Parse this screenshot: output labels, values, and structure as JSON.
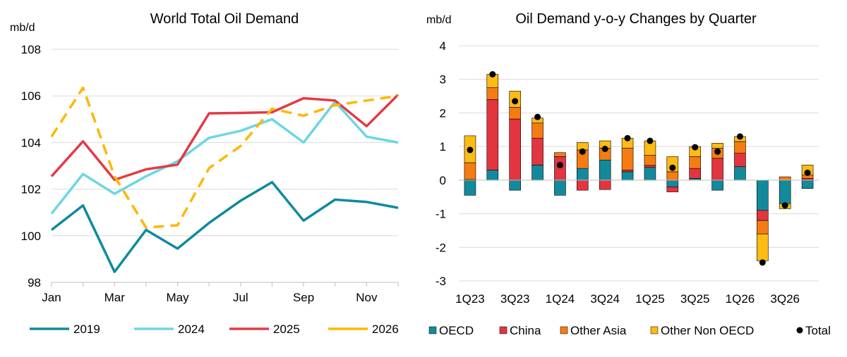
{
  "colors": {
    "s2019": "#0f8a9d",
    "s2024": "#6cd6e4",
    "s2025": "#e23b44",
    "s2026": "#ffb700",
    "oecd": "#138a9c",
    "china": "#e3353f",
    "other_asia": "#f57c12",
    "other_non_oecd": "#fdbb13",
    "total": "#000000",
    "grid": "#d9d9d9"
  },
  "chart_data": [
    {
      "type": "line",
      "title": "World Total Oil Demand",
      "ylabel": "mb/d",
      "ylim": [
        98,
        108
      ],
      "yticks": [
        "98",
        "100",
        "102",
        "104",
        "106",
        "108"
      ],
      "x": [
        "Jan",
        "Feb",
        "Mar",
        "Apr",
        "May",
        "Jun",
        "Jul",
        "Aug",
        "Sep",
        "Oct",
        "Nov",
        "Dec"
      ],
      "xtick_labels": [
        "Jan",
        "Mar",
        "May",
        "Jul",
        "Sep",
        "Nov"
      ],
      "grid": "horizontal",
      "legend_position": "bottom",
      "series": [
        {
          "name": "2019",
          "color_key": "s2019",
          "dashed": false,
          "values": [
            100.25,
            101.3,
            98.45,
            100.25,
            99.45,
            100.55,
            101.5,
            102.3,
            100.65,
            101.55,
            101.45,
            101.2
          ]
        },
        {
          "name": "2024",
          "color_key": "s2024",
          "dashed": false,
          "values": [
            100.95,
            102.65,
            101.8,
            102.55,
            103.2,
            104.2,
            104.5,
            105.0,
            104.0,
            105.75,
            104.25,
            104.0
          ]
        },
        {
          "name": "2025",
          "color_key": "s2025",
          "dashed": false,
          "values": [
            102.55,
            104.05,
            102.4,
            102.85,
            103.05,
            105.25,
            105.27,
            105.3,
            105.9,
            105.8,
            104.7,
            106.05
          ]
        },
        {
          "name": "2026",
          "color_key": "s2026",
          "dashed": true,
          "values": [
            104.25,
            106.35,
            102.55,
            100.35,
            100.45,
            102.9,
            103.85,
            105.45,
            105.15,
            105.6,
            105.8,
            106.0
          ]
        }
      ]
    },
    {
      "type": "bar",
      "stacked": true,
      "title": "Oil Demand y-o-y Changes by Quarter",
      "ylabel": "mb/d",
      "ylim": [
        -3,
        4
      ],
      "yticks": [
        "-3",
        "-2",
        "-1",
        "0",
        "1",
        "2",
        "3",
        "4"
      ],
      "categories": [
        "1Q23",
        "2Q23",
        "3Q23",
        "4Q23",
        "1Q24",
        "2Q24",
        "3Q24",
        "4Q24",
        "1Q25",
        "2Q25",
        "3Q25",
        "4Q25",
        "1Q26",
        "2Q26",
        "3Q26",
        "4Q26"
      ],
      "xtick_labels": [
        "1Q23",
        "3Q23",
        "1Q24",
        "3Q24",
        "1Q25",
        "3Q25",
        "1Q26",
        "3Q26"
      ],
      "grid": "horizontal",
      "legend_position": "bottom",
      "series": [
        {
          "name": "OECD",
          "color_key": "oecd",
          "values": [
            -0.45,
            0.3,
            -0.3,
            0.45,
            -0.45,
            0.35,
            0.6,
            0.25,
            0.38,
            -0.2,
            0.05,
            -0.3,
            0.4,
            -0.9,
            -0.7,
            -0.25
          ]
        },
        {
          "name": "China",
          "color_key": "china",
          "values": [
            0.02,
            2.1,
            1.82,
            0.8,
            0.7,
            -0.3,
            -0.28,
            0.05,
            0.06,
            -0.15,
            0.3,
            0.65,
            0.4,
            -0.3,
            0.0,
            0.05
          ]
        },
        {
          "name": "Other Asia",
          "color_key": "other_asia",
          "values": [
            0.5,
            0.35,
            0.35,
            0.45,
            0.12,
            0.55,
            0.35,
            0.65,
            0.3,
            0.25,
            0.35,
            0.3,
            0.35,
            -0.4,
            0.1,
            0.1
          ]
        },
        {
          "name": "Other Non OECD",
          "color_key": "other_non_oecd",
          "values": [
            0.8,
            0.4,
            0.48,
            0.15,
            0.0,
            0.22,
            0.22,
            0.3,
            0.43,
            0.45,
            0.3,
            0.15,
            0.15,
            -0.8,
            -0.15,
            0.3
          ]
        }
      ],
      "total": {
        "name": "Total",
        "color_key": "total",
        "values": [
          0.9,
          3.15,
          2.35,
          1.88,
          0.45,
          0.85,
          0.93,
          1.25,
          1.17,
          0.37,
          0.98,
          0.85,
          1.3,
          -2.45,
          -0.75,
          0.22
        ]
      }
    }
  ]
}
